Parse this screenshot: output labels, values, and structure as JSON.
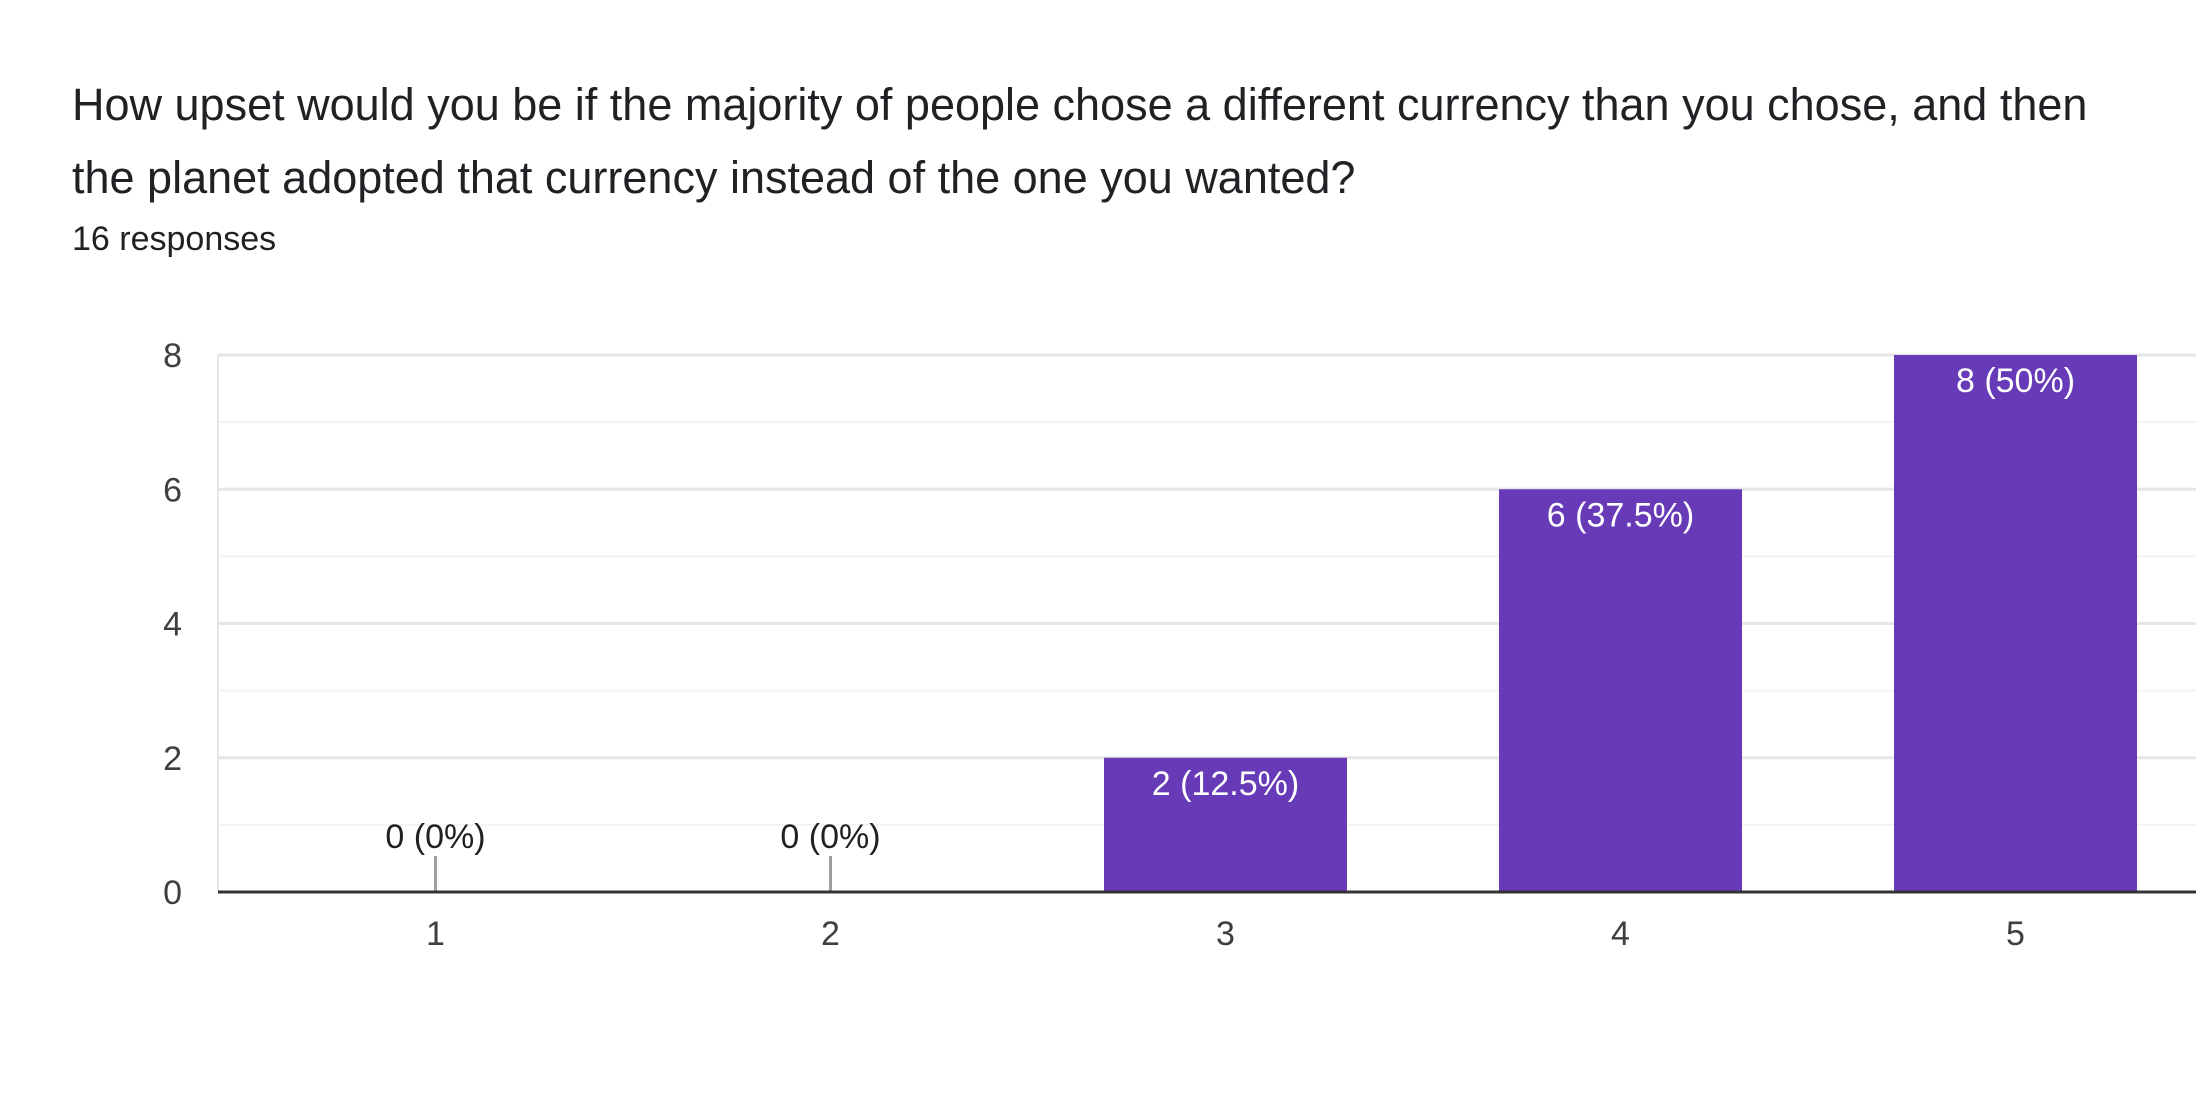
{
  "form": {
    "question": "How upset would you be if the majority of people chose a different currency than you chose, and then the planet adopted that currency instead of the one you wanted?",
    "responses_text": "16 responses"
  },
  "colors": {
    "bar": "#673ab7",
    "grid_major": "#e6e6e6",
    "grid_minor": "#f3f3f3",
    "baseline": "#333333",
    "zero_stem": "#9e9e9e",
    "label_inside": "#ffffff",
    "label_outside": "#202124"
  },
  "chart_data": {
    "type": "bar",
    "categories": [
      "1",
      "2",
      "3",
      "4",
      "5"
    ],
    "values": [
      0,
      0,
      2,
      6,
      8
    ],
    "data_labels": [
      "0 (0%)",
      "0 (0%)",
      "2 (12.5%)",
      "6 (37.5%)",
      "8 (50%)"
    ],
    "y_ticks": [
      0,
      2,
      4,
      6,
      8
    ],
    "ylim": [
      0,
      8
    ],
    "grid": true,
    "legend": "none"
  }
}
